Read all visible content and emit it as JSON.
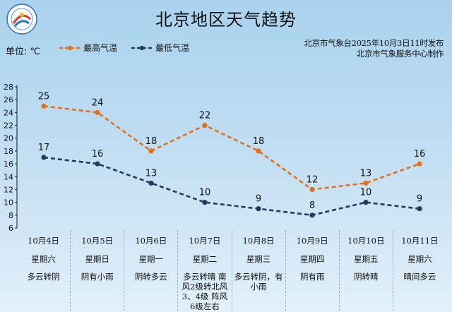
{
  "header": {
    "title": "北京地区天气趋势",
    "unit_label": "单位: ℃",
    "issuer_line1": "北京市气象台2025年10月3日11时发布",
    "issuer_line2": "北京市气象服务中心制作"
  },
  "colors": {
    "high": "#e46f1e",
    "low": "#1f3d63"
  },
  "chart_data": {
    "type": "line",
    "title": "北京地区天气趋势",
    "ylabel": "单位: ℃",
    "ylim": [
      6,
      28
    ],
    "yticks": [
      6,
      8,
      10,
      12,
      14,
      16,
      18,
      20,
      22,
      24,
      26,
      28
    ],
    "categories": [
      "10月4日",
      "10月5日",
      "10月6日",
      "10月7日",
      "10月8日",
      "10月9日",
      "10月10日",
      "10月11日"
    ],
    "weekdays": [
      "星期六",
      "星期日",
      "星期一",
      "星期二",
      "星期三",
      "星期四",
      "星期五",
      "星期六"
    ],
    "weather": [
      "多云转阴",
      "阴有小雨",
      "阴转多云",
      "多云转晴 南风2级转北风3、4级 阵风6级左右",
      "多云转阴，有小雨",
      "阴有雨",
      "阴转晴",
      "晴间多云"
    ],
    "series": [
      {
        "name": "最高气温",
        "values": [
          25,
          24,
          18,
          22,
          18,
          12,
          13,
          16
        ],
        "color": "#e46f1e",
        "style": "dashed"
      },
      {
        "name": "最低气温",
        "values": [
          17,
          16,
          13,
          10,
          9,
          8,
          10,
          9
        ],
        "color": "#1f3d63",
        "style": "dashed"
      }
    ],
    "grid": false,
    "legend_position": "top-left",
    "data_labels": true
  }
}
